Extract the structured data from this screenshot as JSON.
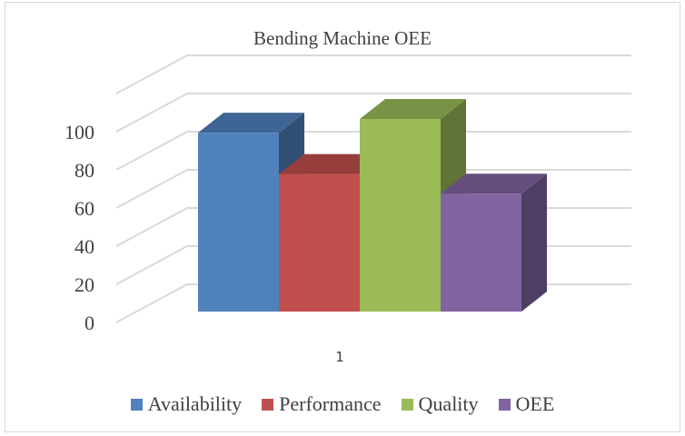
{
  "chart_data": {
    "type": "bar",
    "title": "Bending Machine OEE",
    "categories": [
      "1"
    ],
    "series": [
      {
        "name": "Availability",
        "values": [
          91
        ],
        "color": "#4F81BD"
      },
      {
        "name": "Performance",
        "values": [
          70
        ],
        "color": "#C0504D"
      },
      {
        "name": "Quality",
        "values": [
          98
        ],
        "color": "#9BBB59"
      },
      {
        "name": "OEE",
        "values": [
          60
        ],
        "color": "#8064A2"
      }
    ],
    "y_ticks": [
      "0",
      "20",
      "40",
      "60",
      "80",
      "100"
    ],
    "ylim": [
      0,
      120
    ],
    "grid": true,
    "legend_position": "bottom",
    "style": "3d-clustered-column"
  }
}
